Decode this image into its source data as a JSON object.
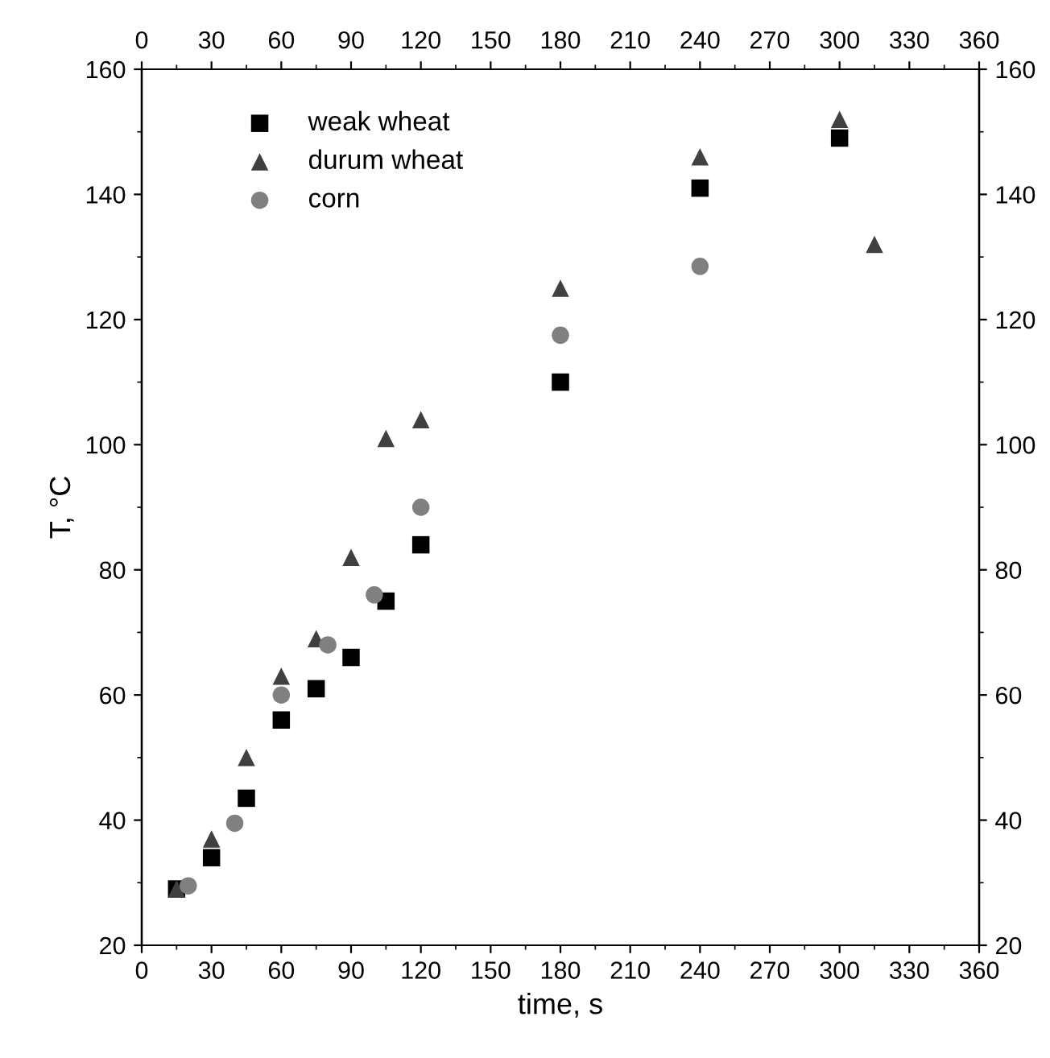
{
  "chart_data": {
    "type": "scatter",
    "xlabel": "time, s",
    "ylabel": "T, °C",
    "xlim": [
      0,
      360
    ],
    "xticks": [
      0,
      30,
      60,
      90,
      120,
      150,
      180,
      210,
      240,
      270,
      300,
      330,
      360
    ],
    "x2lim": [
      0,
      360
    ],
    "x2ticks": [
      0,
      30,
      60,
      90,
      120,
      150,
      180,
      210,
      240,
      270,
      300,
      330,
      360
    ],
    "ylim": [
      20,
      160
    ],
    "yticks": [
      20,
      40,
      60,
      80,
      100,
      120,
      140,
      160
    ],
    "y2lim": [
      20,
      160
    ],
    "y2ticks": [
      20,
      40,
      60,
      80,
      100,
      120,
      140,
      160
    ],
    "legend": "top left",
    "grid": false,
    "series": [
      {
        "name": "weak wheat",
        "color": "#000000",
        "marker": "square",
        "x": [
          15,
          30,
          45,
          60,
          75,
          90,
          105,
          120,
          180,
          240,
          300
        ],
        "values": [
          29,
          34,
          43.5,
          56,
          61,
          66,
          75,
          84,
          110,
          141,
          149
        ]
      },
      {
        "name": "durum wheat",
        "color": "#404040",
        "marker": "triangle",
        "x": [
          15,
          30,
          45,
          60,
          75,
          90,
          105,
          120,
          180,
          240,
          300,
          315
        ],
        "values": [
          29,
          37,
          50,
          63,
          69,
          82,
          101,
          104,
          125,
          146,
          152,
          132
        ]
      },
      {
        "name": "corn",
        "color": "#808080",
        "marker": "circle",
        "x": [
          20,
          40,
          60,
          80,
          100,
          120,
          180,
          240
        ],
        "values": [
          29.5,
          39.5,
          60,
          68,
          76,
          90,
          117.5,
          128.5
        ]
      }
    ]
  }
}
